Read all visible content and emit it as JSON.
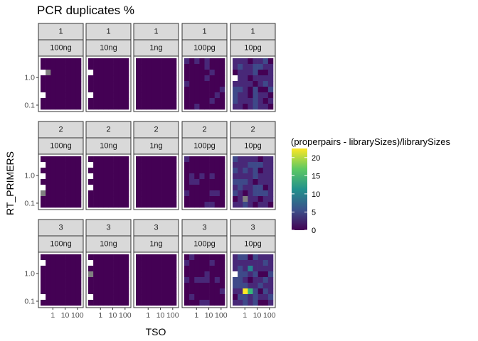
{
  "chart_data": {
    "type": "heatmap",
    "title": "PCR duplicates %",
    "xlabel": "TSO",
    "ylabel": "RT_PRIMERS",
    "x_scale": "log10",
    "y_scale": "log10",
    "x_ticks": [
      {
        "value": 1,
        "label": "1"
      },
      {
        "value": 10,
        "label": "10"
      },
      {
        "value": 100,
        "label": "100"
      }
    ],
    "y_ticks": [
      {
        "value": 1.0,
        "label": "1.0"
      },
      {
        "value": 0.1,
        "label": "0.1"
      }
    ],
    "xlim": [
      0.1,
      200
    ],
    "ylim": [
      0.07,
      5
    ],
    "facet_rows": [
      "1",
      "2",
      "3"
    ],
    "facet_cols": [
      "100ng",
      "10ng",
      "1ng",
      "100pg",
      "10pg"
    ],
    "legend": {
      "title": "(properpairs - librarySizes)/librarySizes",
      "position": "right",
      "breaks": [
        0,
        5,
        10,
        15,
        20
      ],
      "labels": [
        "0",
        "5",
        "10",
        "15",
        "20"
      ],
      "limits": [
        0,
        22.5
      ],
      "colormap": "viridis"
    },
    "na_color": "#808080",
    "grid": false
  }
}
